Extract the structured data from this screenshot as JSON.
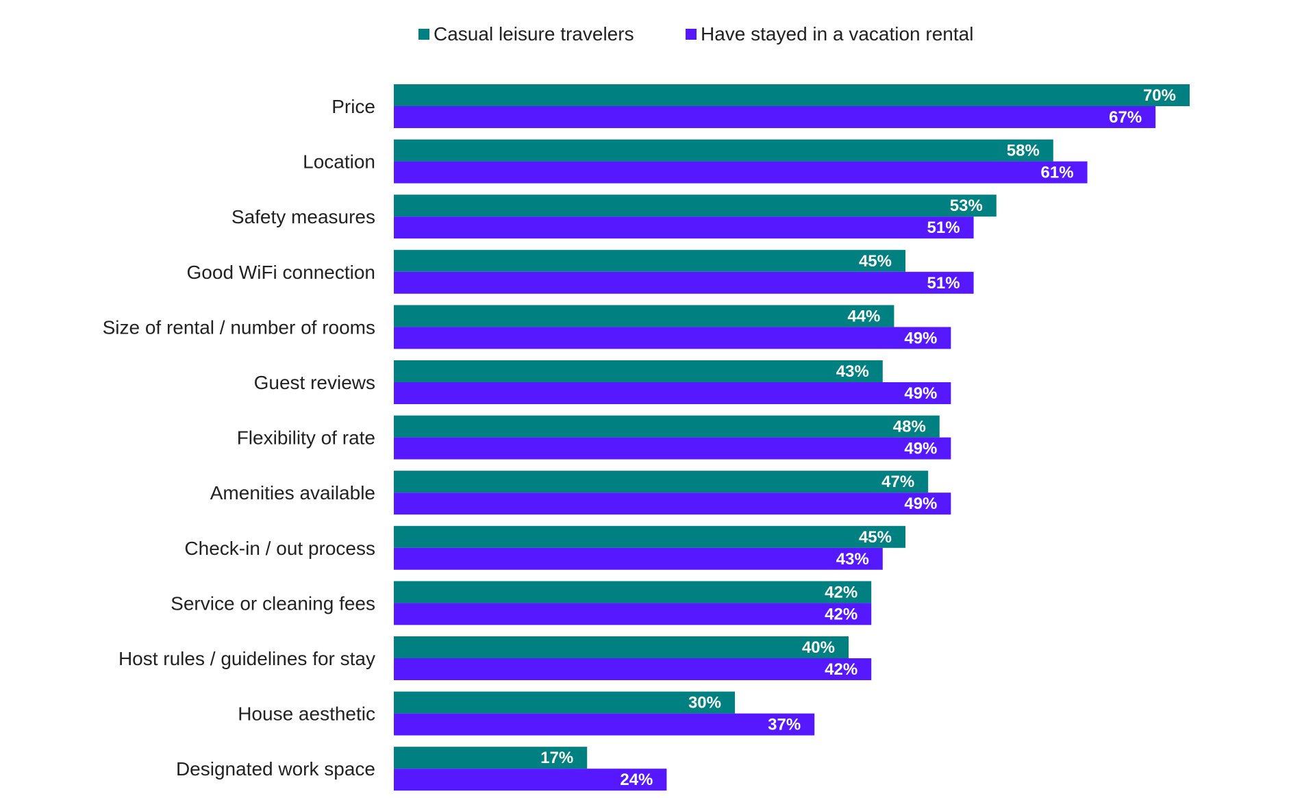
{
  "chart_data": {
    "type": "bar",
    "orientation": "horizontal",
    "title": "",
    "xlabel": "",
    "ylabel": "",
    "xlim": [
      0,
      100
    ],
    "value_suffix": "%",
    "grid": false,
    "legend_position": "top-center",
    "categories": [
      "Price",
      "Location",
      "Safety measures",
      "Good WiFi connection",
      "Size of rental / number of rooms",
      "Guest reviews",
      "Flexibility of rate",
      "Amenities available",
      "Check-in / out process",
      "Service or cleaning fees",
      "Host rules / guidelines for stay",
      "House aesthetic",
      "Designated work space"
    ],
    "series": [
      {
        "name": "Casual leisure travelers",
        "color": "#008080",
        "values": [
          70,
          58,
          53,
          45,
          44,
          43,
          48,
          47,
          45,
          42,
          40,
          30,
          17
        ]
      },
      {
        "name": "Have stayed in a vacation rental",
        "color": "#5619FF",
        "values": [
          67,
          61,
          51,
          51,
          49,
          49,
          49,
          49,
          43,
          42,
          42,
          37,
          24
        ]
      }
    ]
  }
}
